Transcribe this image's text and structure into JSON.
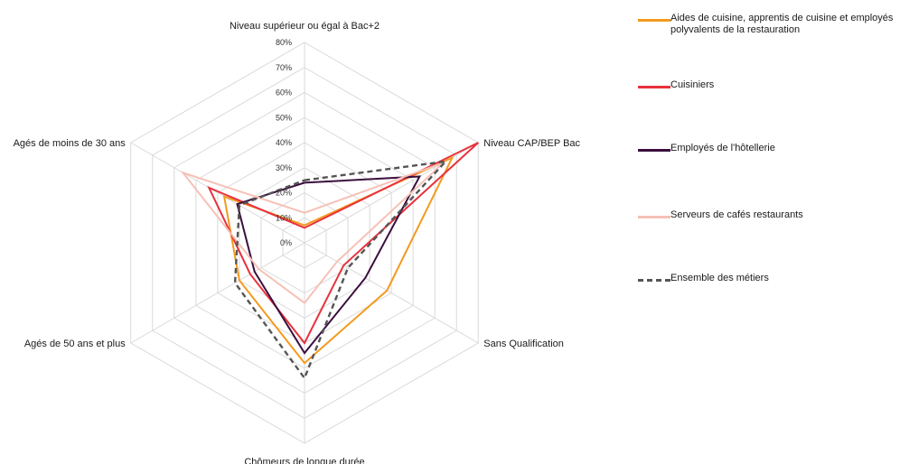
{
  "chart_data": {
    "type": "radar",
    "axes": [
      "Niveau supérieur ou égal à Bac+2",
      "Niveau CAP/BEP Bac",
      "Sans Qualification",
      "Chômeurs de longue durée",
      "Agés de 50 ans et plus",
      "Agés de moins de 30 ans"
    ],
    "tick_labels": [
      "0%",
      "10%",
      "20%",
      "30%",
      "40%",
      "50%",
      "60%",
      "70%",
      "80%"
    ],
    "rlim": [
      0,
      80
    ],
    "grid": true,
    "legend_position": "right",
    "series": [
      {
        "name": "Aides de cuisine, apprentis de cuisine et employés polyvalents de la restauration",
        "color": "#F39A1E",
        "dash": "solid",
        "values": [
          7,
          68,
          38,
          48,
          30,
          37
        ]
      },
      {
        "name": "Cuisiniers",
        "color": "#E8323C",
        "dash": "solid",
        "values": [
          6,
          80,
          18,
          40,
          25,
          44
        ]
      },
      {
        "name": "Employés de l'hôtellerie",
        "color": "#3A0F3E",
        "dash": "solid",
        "values": [
          24,
          53,
          28,
          44,
          23,
          31
        ]
      },
      {
        "name": "Serveurs de cafés restaurants",
        "color": "#F6C1B5",
        "dash": "solid",
        "values": [
          12,
          64,
          15,
          24,
          21,
          56
        ]
      },
      {
        "name": "Ensemble des métiers",
        "color": "#555555",
        "dash": "dashed",
        "values": [
          25,
          65,
          20,
          54,
          32,
          30
        ]
      }
    ]
  }
}
